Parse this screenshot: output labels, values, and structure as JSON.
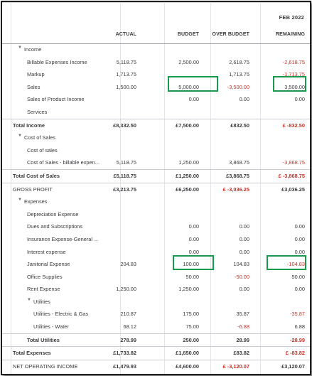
{
  "period": "FEB 2022",
  "columns": [
    "ACTUAL",
    "BUDGET",
    "OVER BUDGET",
    "REMAINING"
  ],
  "rows": [
    {
      "label": "Income",
      "level": 0,
      "caret": "▼",
      "bold": false,
      "values": [
        "",
        "",
        "",
        ""
      ],
      "neg": [
        false,
        false,
        false,
        false
      ]
    },
    {
      "label": "Billable Expenses Income",
      "level": 1,
      "caret": "",
      "bold": false,
      "values": [
        "5,118.75",
        "2,500.00",
        "2,618.75",
        "-2,618.75"
      ],
      "neg": [
        false,
        false,
        false,
        true
      ]
    },
    {
      "label": "Markup",
      "level": 1,
      "caret": "",
      "bold": false,
      "values": [
        "1,713.75",
        "",
        "1,713.75",
        "-1,713.75"
      ],
      "neg": [
        false,
        false,
        false,
        true
      ]
    },
    {
      "label": "Sales",
      "level": 1,
      "caret": "",
      "bold": false,
      "values": [
        "1,500.00",
        "5,000.00",
        "-3,500.00",
        "3,500.00"
      ],
      "neg": [
        false,
        false,
        true,
        false
      ]
    },
    {
      "label": "Sales of Product Income",
      "level": 1,
      "caret": "",
      "bold": false,
      "values": [
        "",
        "0.00",
        "0.00",
        "0.00"
      ],
      "neg": [
        false,
        false,
        false,
        false
      ]
    },
    {
      "label": "Services",
      "level": 1,
      "caret": "",
      "bold": false,
      "values": [
        "",
        "",
        "",
        ""
      ],
      "neg": [
        false,
        false,
        false,
        false
      ]
    },
    {
      "label": "Total Income",
      "level": 0,
      "caret": "",
      "bold": true,
      "total": true,
      "values": [
        "£8,332.50",
        "£7,500.00",
        "£832.50",
        "£ -832.50"
      ],
      "neg": [
        false,
        false,
        false,
        true
      ]
    },
    {
      "label": "Cost of Sales",
      "level": 0,
      "caret": "▼",
      "bold": false,
      "values": [
        "",
        "",
        "",
        ""
      ],
      "neg": [
        false,
        false,
        false,
        false
      ]
    },
    {
      "label": "Cost of sales",
      "level": 1,
      "caret": "",
      "bold": false,
      "values": [
        "",
        "",
        "",
        ""
      ],
      "neg": [
        false,
        false,
        false,
        false
      ]
    },
    {
      "label": "Cost of Sales - billable expen...",
      "level": 1,
      "caret": "",
      "bold": false,
      "values": [
        "5,118.75",
        "1,250.00",
        "3,868.75",
        "-3,868.75"
      ],
      "neg": [
        false,
        false,
        false,
        true
      ]
    },
    {
      "label": "Total Cost of Sales",
      "level": 0,
      "caret": "",
      "bold": true,
      "total": true,
      "values": [
        "£5,118.75",
        "£1,250.00",
        "£3,868.75",
        "£ -3,868.75"
      ],
      "neg": [
        false,
        false,
        false,
        true
      ]
    },
    {
      "label": "GROSS PROFIT",
      "level": 0,
      "caret": "",
      "bold": false,
      "total": true,
      "values": [
        "£3,213.75",
        "£6,250.00",
        "£ -3,036.25",
        "£3,036.25"
      ],
      "neg": [
        false,
        false,
        true,
        false
      ],
      "bold_values": true
    },
    {
      "label": "Expenses",
      "level": 0,
      "caret": "▼",
      "bold": false,
      "values": [
        "",
        "",
        "",
        ""
      ],
      "neg": [
        false,
        false,
        false,
        false
      ]
    },
    {
      "label": "Depreciation Expense",
      "level": 1,
      "caret": "",
      "bold": false,
      "values": [
        "",
        "",
        "",
        ""
      ],
      "neg": [
        false,
        false,
        false,
        false
      ]
    },
    {
      "label": "Dues and Subscriptions",
      "level": 1,
      "caret": "",
      "bold": false,
      "values": [
        "",
        "0.00",
        "0.00",
        "0.00"
      ],
      "neg": [
        false,
        false,
        false,
        false
      ]
    },
    {
      "label": "Insurance Expense-General ...",
      "level": 1,
      "caret": "",
      "bold": false,
      "values": [
        "",
        "0.00",
        "0.00",
        "0.00"
      ],
      "neg": [
        false,
        false,
        false,
        false
      ]
    },
    {
      "label": "Interest expense",
      "level": 1,
      "caret": "",
      "bold": false,
      "values": [
        "",
        "0.00",
        "0.00",
        "0.00"
      ],
      "neg": [
        false,
        false,
        false,
        false
      ]
    },
    {
      "label": "Janitorial Expense",
      "level": 1,
      "caret": "",
      "bold": false,
      "values": [
        "204.83",
        "100.00",
        "104.83",
        "-104.83"
      ],
      "neg": [
        false,
        false,
        false,
        true
      ]
    },
    {
      "label": "Office Supplies",
      "level": 1,
      "caret": "",
      "bold": false,
      "values": [
        "",
        "50.00",
        "-50.00",
        "50.00"
      ],
      "neg": [
        false,
        false,
        true,
        false
      ]
    },
    {
      "label": "Rent Expense",
      "level": 1,
      "caret": "",
      "bold": false,
      "values": [
        "1,250.00",
        "1,250.00",
        "0.00",
        "0.00"
      ],
      "neg": [
        false,
        false,
        false,
        false
      ]
    },
    {
      "label": "Utilities",
      "level": 1,
      "caret": "▼",
      "bold": false,
      "values": [
        "",
        "",
        "",
        ""
      ],
      "neg": [
        false,
        false,
        false,
        false
      ]
    },
    {
      "label": "Utilities - Electric & Gas",
      "level": 2,
      "caret": "",
      "bold": false,
      "values": [
        "210.87",
        "175.00",
        "35.87",
        "-35.87"
      ],
      "neg": [
        false,
        false,
        false,
        true
      ]
    },
    {
      "label": "Utilities - Water",
      "level": 2,
      "caret": "",
      "bold": false,
      "values": [
        "68.12",
        "75.00",
        "-6.88",
        "6.88"
      ],
      "neg": [
        false,
        false,
        true,
        false
      ]
    },
    {
      "label": "Total Utilities",
      "level": 1,
      "caret": "",
      "bold": true,
      "total": true,
      "values": [
        "278.99",
        "250.00",
        "28.99",
        "-28.99"
      ],
      "neg": [
        false,
        false,
        false,
        true
      ]
    },
    {
      "label": "Total Expenses",
      "level": 0,
      "caret": "",
      "bold": true,
      "total": true,
      "values": [
        "£1,733.82",
        "£1,650.00",
        "£83.82",
        "£ -83.82"
      ],
      "neg": [
        false,
        false,
        false,
        true
      ]
    },
    {
      "label": "NET OPERATING INCOME",
      "level": 0,
      "caret": "",
      "bold": false,
      "total": true,
      "values": [
        "£1,479.93",
        "£4,600.00",
        "£ -3,120.07",
        "£3,120.07"
      ],
      "neg": [
        false,
        false,
        true,
        false
      ],
      "bold_values": true
    }
  ],
  "colors": {
    "negative": "#d52b1e",
    "highlight": "#169a4c",
    "border": "#1e1e1e"
  }
}
